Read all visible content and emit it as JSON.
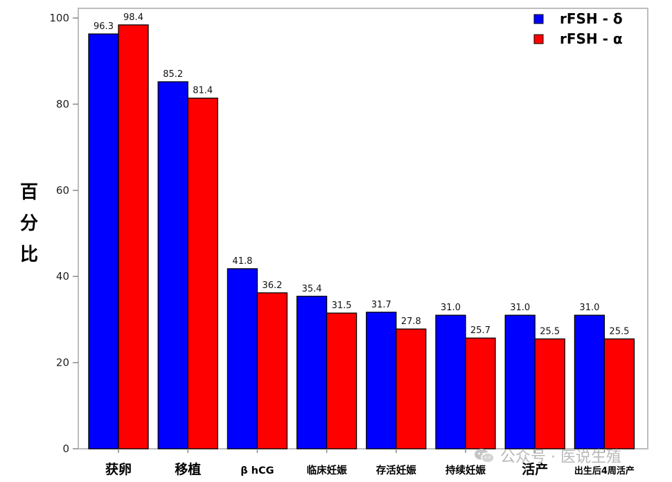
{
  "chart_data": {
    "type": "bar",
    "categories": [
      "获卵",
      "移植",
      "β hCG",
      "临床妊娠",
      "存活妊娠",
      "持续妊娠",
      "活产",
      "出生后4周活产"
    ],
    "series": [
      {
        "name": "rFSH - δ",
        "color": "#0000ff",
        "values": [
          96.3,
          85.2,
          41.8,
          35.4,
          31.7,
          31.0,
          31.0,
          31.0
        ]
      },
      {
        "name": "rFSH - α",
        "color": "#ff0000",
        "values": [
          98.4,
          81.4,
          36.2,
          31.5,
          27.8,
          25.7,
          25.5,
          25.5
        ]
      }
    ],
    "data_labels": [
      [
        "96.3",
        "85.2",
        "41.8",
        "35.4",
        "31.7",
        "31.0",
        "31.0",
        "31.0"
      ],
      [
        "98.4",
        "81.4",
        "36.2",
        "31.5",
        "27.8",
        "25.7",
        "25.5",
        "25.5"
      ]
    ],
    "yticks": [
      "0",
      "20",
      "40",
      "60",
      "80",
      "100"
    ],
    "ylabel": "百分比",
    "xlabel": "",
    "title": "",
    "ylim": [
      0,
      100
    ],
    "grid": false,
    "legend_position": "top-right"
  },
  "watermark": {
    "text": "公众号 · 医说生殖",
    "icon": "wechat-icon"
  }
}
